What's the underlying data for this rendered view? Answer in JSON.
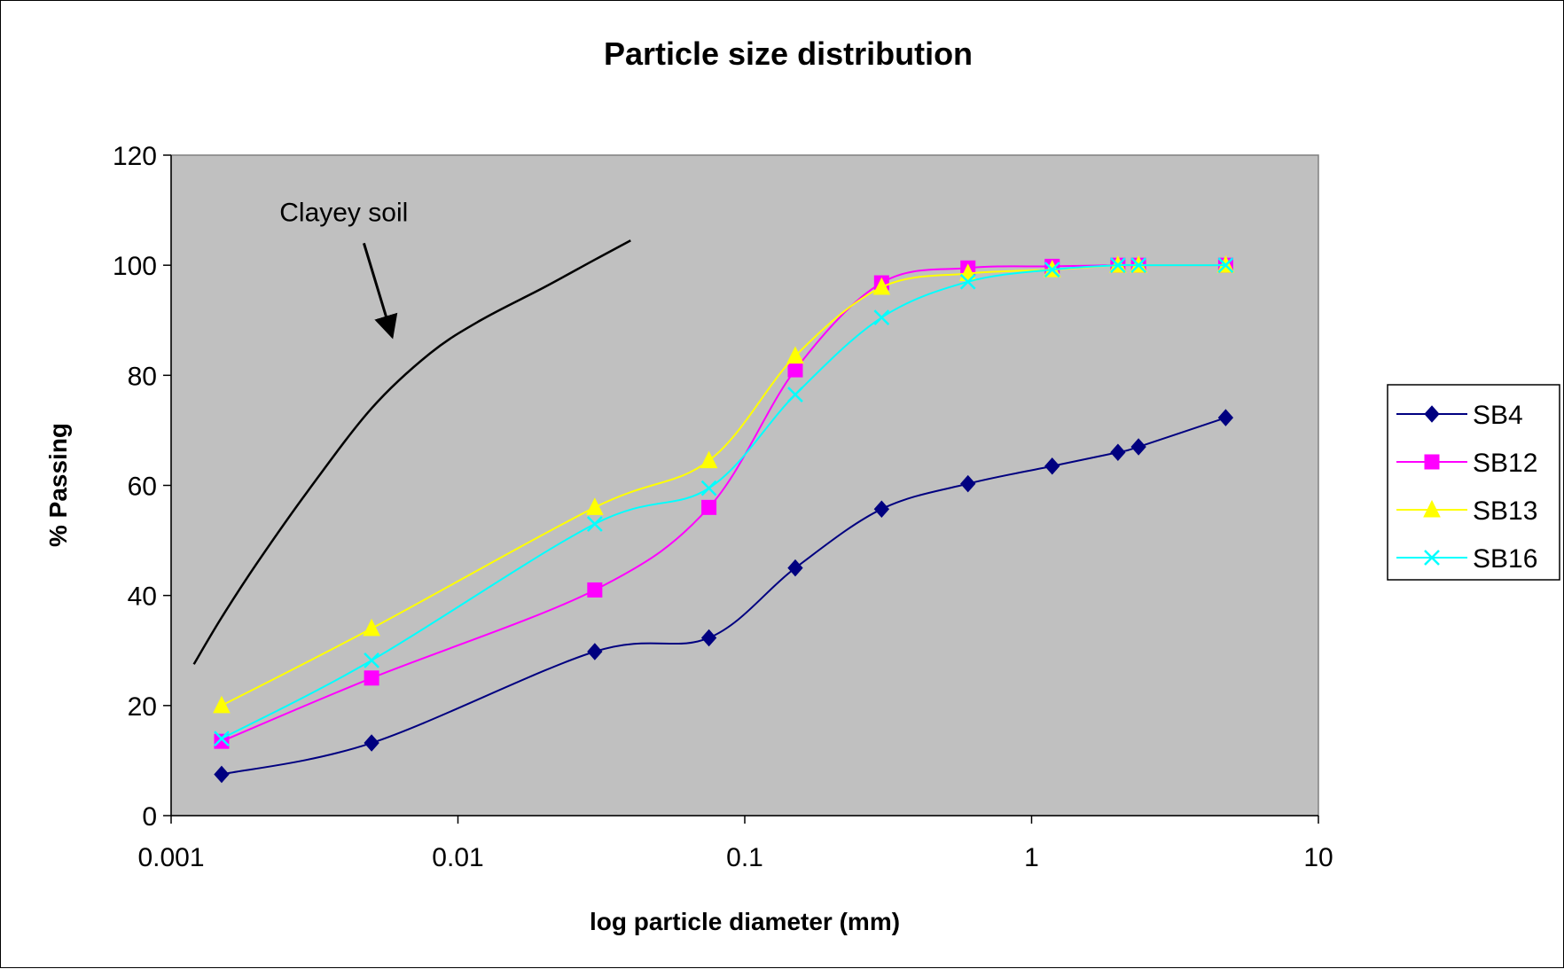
{
  "chart_data": {
    "type": "line",
    "title": "Particle size distribution",
    "xlabel": "log particle diameter (mm)",
    "ylabel": "% Passing",
    "x_scale": "log",
    "xlim": [
      0.001,
      10
    ],
    "ylim": [
      0,
      120
    ],
    "x_ticks": [
      0.001,
      0.01,
      0.1,
      1,
      10
    ],
    "x_tick_labels": [
      "0.001",
      "0.01",
      "0.1",
      "1",
      "10"
    ],
    "y_ticks": [
      0,
      20,
      40,
      60,
      80,
      100,
      120
    ],
    "y_tick_labels": [
      "0",
      "20",
      "40",
      "60",
      "80",
      "100",
      "120"
    ],
    "grid": false,
    "plot_background": "#c0c0c0",
    "legend_position": "right",
    "series": [
      {
        "name": "SB4",
        "color": "#000080",
        "marker": "diamond",
        "x": [
          0.0015,
          0.005,
          0.03,
          0.075,
          0.15,
          0.3,
          0.6,
          1.18,
          2,
          2.36,
          4.75
        ],
        "values": [
          7.5,
          13.2,
          29.8,
          32.3,
          45,
          55.7,
          60.3,
          63.5,
          66,
          67,
          72.3
        ]
      },
      {
        "name": "SB12",
        "color": "#ff00ff",
        "marker": "square",
        "x": [
          0.0015,
          0.005,
          0.03,
          0.075,
          0.15,
          0.3,
          0.6,
          1.18,
          2,
          2.36,
          4.75
        ],
        "values": [
          13.5,
          25,
          41,
          56,
          81,
          96.8,
          99.5,
          99.8,
          100,
          100,
          100
        ]
      },
      {
        "name": "SB13",
        "color": "#ffff00",
        "marker": "triangle",
        "x": [
          0.0015,
          0.005,
          0.03,
          0.075,
          0.15,
          0.3,
          0.6,
          1.18,
          2,
          2.36,
          4.75
        ],
        "values": [
          20,
          34,
          56,
          64.5,
          83.5,
          96,
          98.5,
          99.2,
          100,
          100,
          100
        ]
      },
      {
        "name": "SB16",
        "color": "#00ffff",
        "marker": "x",
        "x": [
          0.0015,
          0.005,
          0.03,
          0.075,
          0.15,
          0.3,
          0.6,
          1.18,
          2,
          2.36,
          4.75
        ],
        "values": [
          14,
          28.2,
          53,
          59.5,
          76.5,
          90.5,
          97,
          99.2,
          100,
          100,
          100
        ]
      }
    ],
    "reference_curve": {
      "color": "#000000",
      "x": [
        0.0012,
        0.0015,
        0.002,
        0.003,
        0.005,
        0.008,
        0.012,
        0.02,
        0.03,
        0.04
      ],
      "values": [
        27.5,
        36,
        46,
        59,
        74,
        84,
        90,
        96,
        101,
        104.5
      ]
    },
    "annotations": [
      {
        "text": "Clayey soil",
        "text_at": [
          0.004,
          108
        ],
        "arrow_from": [
          0.0047,
          104
        ],
        "arrow_to": [
          0.0059,
          87
        ]
      }
    ]
  }
}
